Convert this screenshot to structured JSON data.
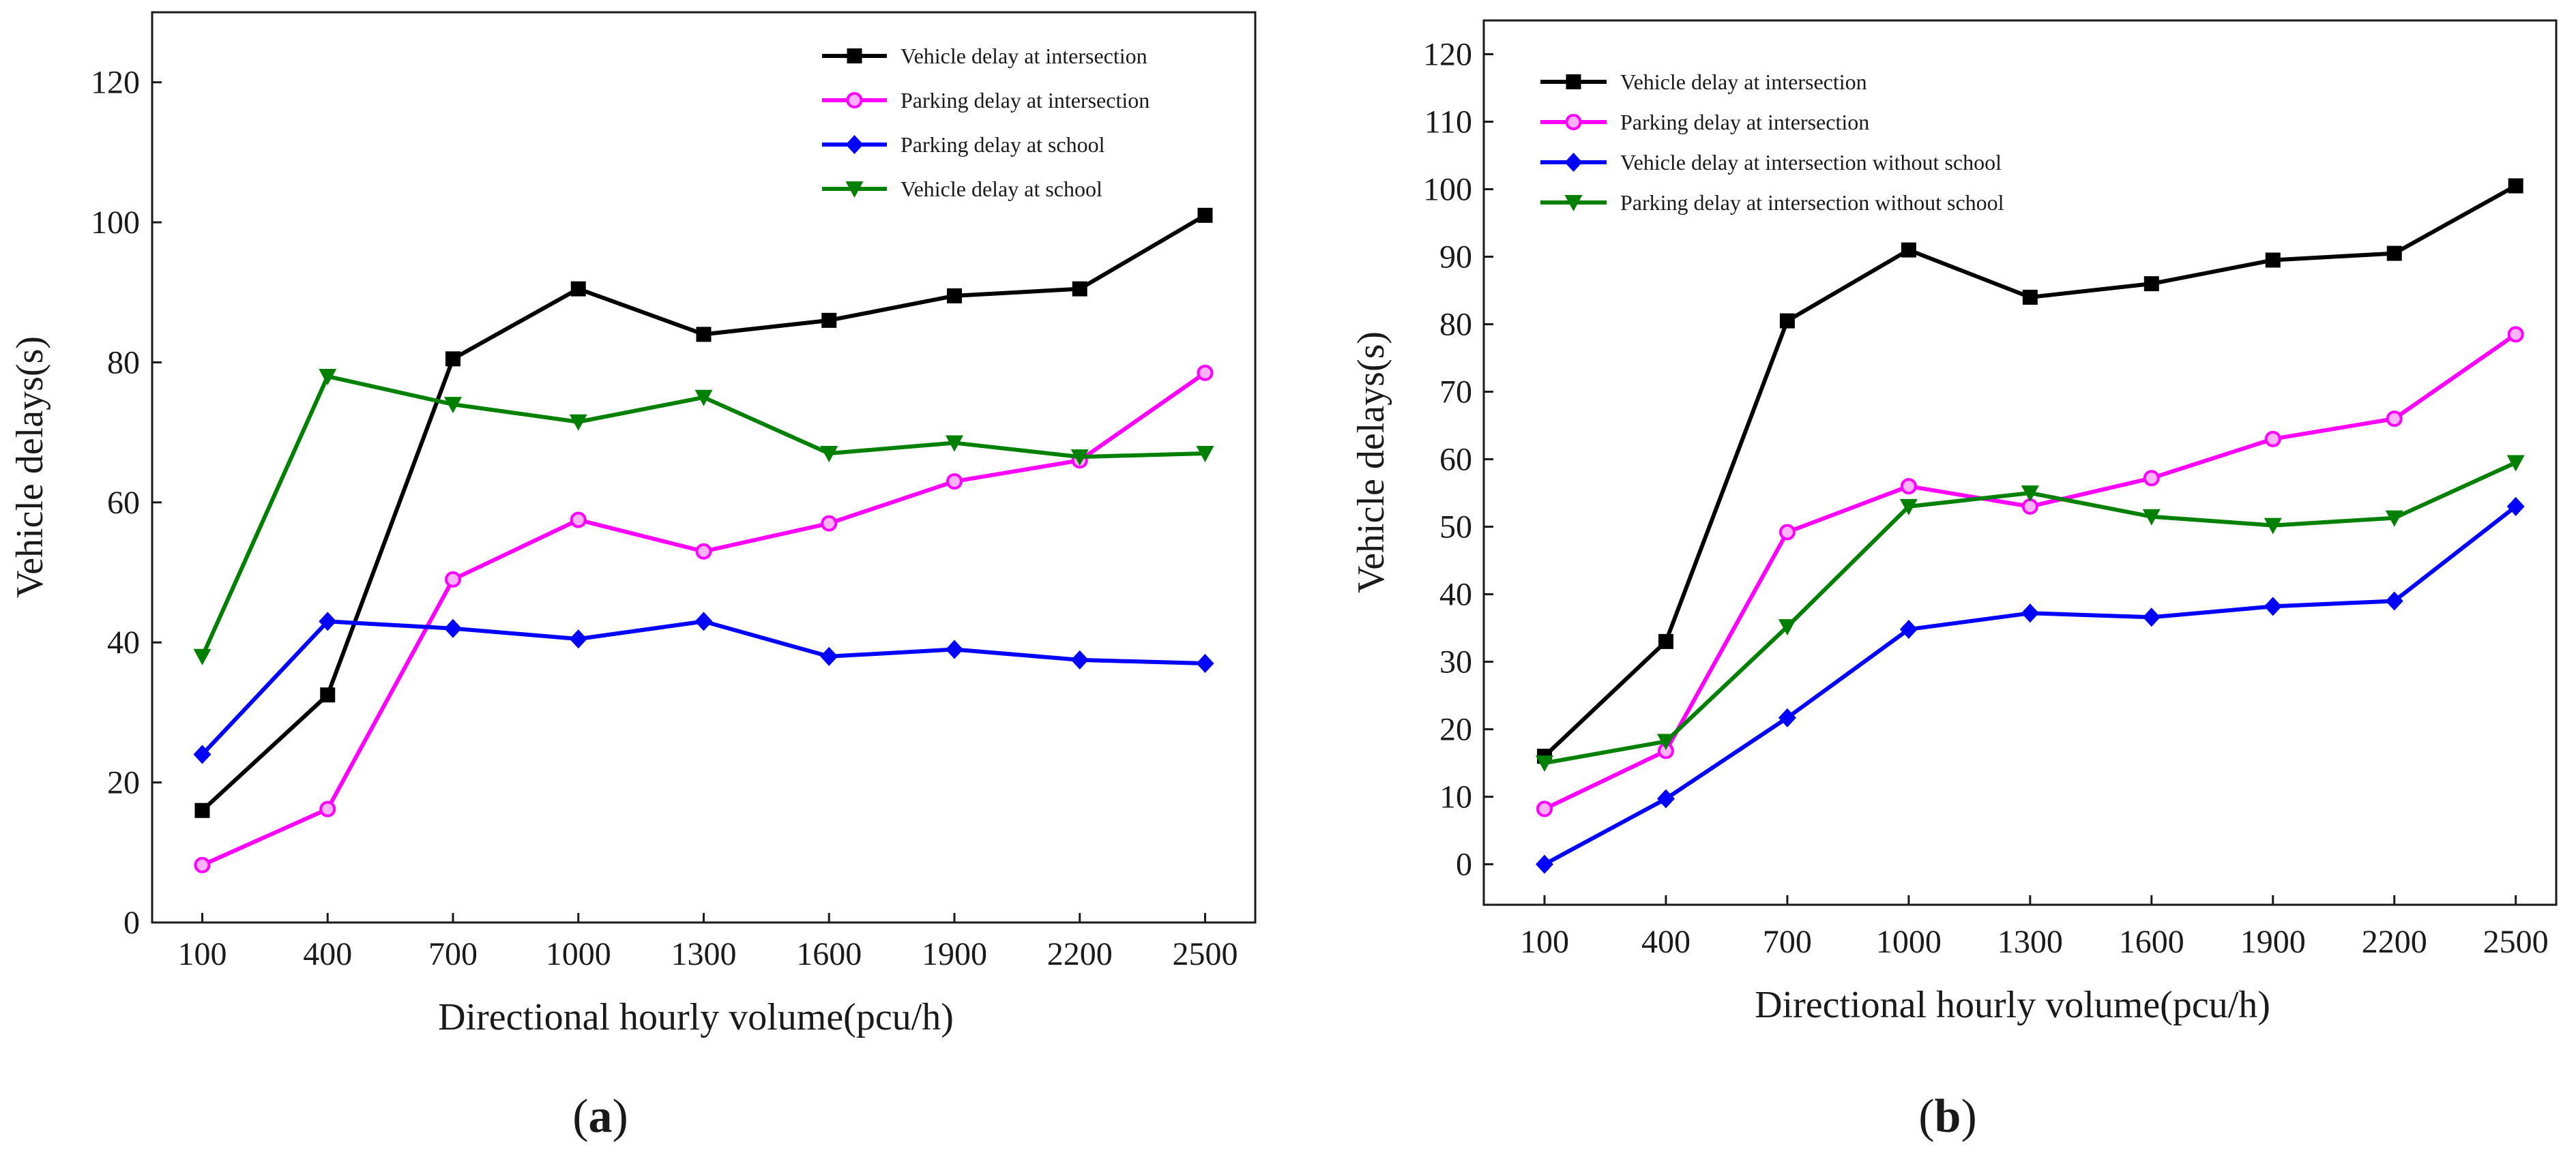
{
  "chart_data": [
    {
      "type": "line",
      "panel": "a",
      "caption_open": "(",
      "caption_letter": "a",
      "caption_close": ")",
      "xlabel": "Directional hourly volume(pcu/h)",
      "ylabel": "Vehicle delays(s)",
      "categories": [
        "100",
        "400",
        "700",
        "1000",
        "1300",
        "1600",
        "1900",
        "2200",
        "2500"
      ],
      "x": [
        100,
        400,
        700,
        1000,
        1300,
        1600,
        1900,
        2200,
        2500
      ],
      "xlim": [
        -20,
        2620
      ],
      "ylim": [
        0,
        130
      ],
      "yticks": [
        0,
        20,
        40,
        60,
        80,
        100,
        120
      ],
      "legend_position": "top-right",
      "series": [
        {
          "name": "Vehicle delay at intersection",
          "color": "#000000",
          "marker": "square",
          "values": [
            16,
            32.5,
            80.5,
            90.5,
            84,
            86,
            89.5,
            90.5,
            101
          ]
        },
        {
          "name": "Parking delay at intersection",
          "color": "#ff00ff",
          "marker": "circle",
          "values": [
            8.2,
            16.2,
            49,
            57.5,
            53,
            57,
            63,
            66,
            78.5
          ]
        },
        {
          "name": "Parking delay at school",
          "color": "#0000ff",
          "marker": "diamond",
          "values": [
            24,
            43,
            42,
            40.5,
            43,
            38,
            39,
            37.5,
            37
          ]
        },
        {
          "name": "Vehicle delay at school",
          "color": "#008000",
          "marker": "triangle-down",
          "values": [
            38,
            78,
            74,
            71.5,
            75,
            67,
            68.5,
            66.5,
            67
          ]
        }
      ]
    },
    {
      "type": "line",
      "panel": "b",
      "caption_open": "(",
      "caption_letter": "b",
      "caption_close": ")",
      "xlabel": "Directional hourly volume(pcu/h)",
      "ylabel": "Vehicle delays(s)",
      "categories": [
        "100",
        "400",
        "700",
        "1000",
        "1300",
        "1600",
        "1900",
        "2200",
        "2500"
      ],
      "x": [
        100,
        400,
        700,
        1000,
        1300,
        1600,
        1900,
        2200,
        2500
      ],
      "xlim": [
        -50,
        2600
      ],
      "ylim": [
        -6,
        125
      ],
      "yticks": [
        0,
        10,
        20,
        30,
        40,
        50,
        60,
        70,
        80,
        90,
        100,
        110,
        120
      ],
      "legend_position": "top-left",
      "series": [
        {
          "name": "Vehicle delay at intersection",
          "color": "#000000",
          "marker": "square",
          "values": [
            16,
            33,
            80.5,
            91,
            84,
            86,
            89.5,
            90.5,
            100.5
          ]
        },
        {
          "name": "Parking delay at intersection",
          "color": "#ff00ff",
          "marker": "circle",
          "values": [
            8.2,
            16.8,
            49.2,
            56,
            53,
            57.2,
            63,
            66,
            78.5
          ]
        },
        {
          "name": "Vehicle delay at intersection without school",
          "color": "#0000ff",
          "marker": "diamond",
          "values": [
            0,
            9.7,
            21.7,
            34.8,
            37.2,
            36.6,
            38.2,
            39,
            53
          ]
        },
        {
          "name": "Parking delay at intersection without school",
          "color": "#008000",
          "marker": "triangle-down",
          "values": [
            15,
            18.2,
            35.2,
            53,
            55,
            51.5,
            50.2,
            51.3,
            59.5
          ]
        }
      ]
    }
  ]
}
